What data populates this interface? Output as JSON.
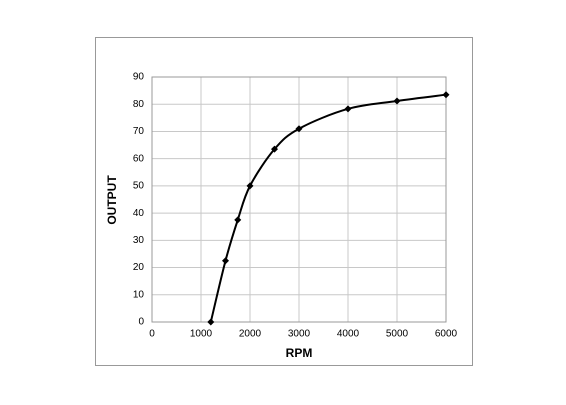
{
  "chart_data": {
    "type": "line",
    "x_label": "RPM",
    "y_label": "OUTPUT",
    "x": [
      1200,
      1500,
      1750,
      2000,
      2500,
      3000,
      4000,
      5000,
      6000
    ],
    "series": [
      {
        "color": "#000000",
        "values": [
          0,
          22.5,
          37.5,
          50,
          63.5,
          71,
          78.3,
          81.2,
          83.5
        ]
      }
    ],
    "xlim": [
      0,
      6000
    ],
    "xticks": [
      0,
      1000,
      2000,
      3000,
      4000,
      5000,
      6000
    ],
    "ylim": [
      0,
      90
    ],
    "yticks": [
      0,
      10,
      20,
      30,
      40,
      50,
      60,
      70,
      80,
      90
    ],
    "grid": true,
    "smooth": true,
    "markers": "diamond"
  }
}
